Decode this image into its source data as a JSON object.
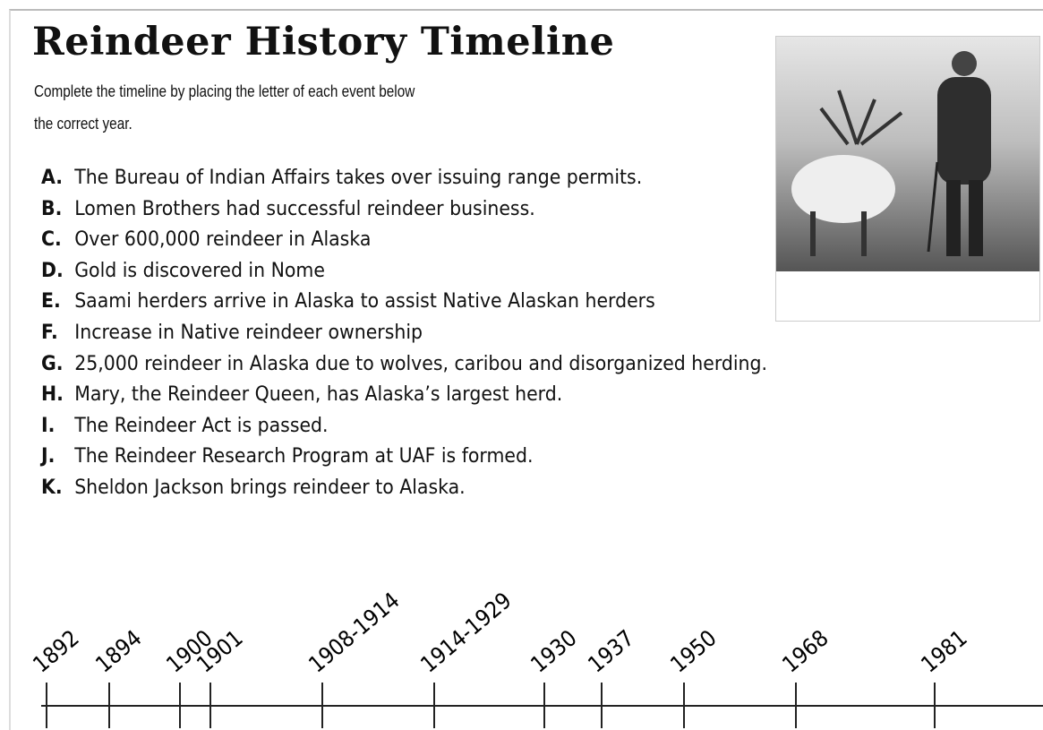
{
  "header": {
    "title": "Reindeer History Timeline",
    "instructions": [
      "Complete the timeline by placing the letter of each event below",
      "the correct year."
    ]
  },
  "events": [
    {
      "letter": "A.",
      "text": "The Bureau of Indian Affairs takes over issuing range permits."
    },
    {
      "letter": "B.",
      "text": "Lomen Brothers had successful reindeer business."
    },
    {
      "letter": "C.",
      "text": "Over 600,000 reindeer in Alaska"
    },
    {
      "letter": "D.",
      "text": "Gold is discovered in Nome"
    },
    {
      "letter": "E.",
      "text": "Saami herders arrive in Alaska to assist Native Alaskan herders"
    },
    {
      "letter": "F.",
      "text": "Increase in Native reindeer ownership"
    },
    {
      "letter": "G.",
      "text": "25,000 reindeer in Alaska due to wolves, caribou and disorganized herding."
    },
    {
      "letter": "H.",
      "text": "Mary, the Reindeer Queen, has Alaska’s largest herd."
    },
    {
      "letter": "I.",
      "text": "The Reindeer Act is passed."
    },
    {
      "letter": "J.",
      "text": "The Reindeer Research Program at UAF is formed."
    },
    {
      "letter": "K.",
      "text": "Sheldon Jackson brings reindeer to Alaska."
    }
  ],
  "timeline": {
    "years": [
      "1892",
      "1894",
      "1900",
      "1901",
      "1908-1914",
      "1914-1929",
      "1930",
      "1937",
      "1950",
      "1968",
      "1981"
    ]
  }
}
